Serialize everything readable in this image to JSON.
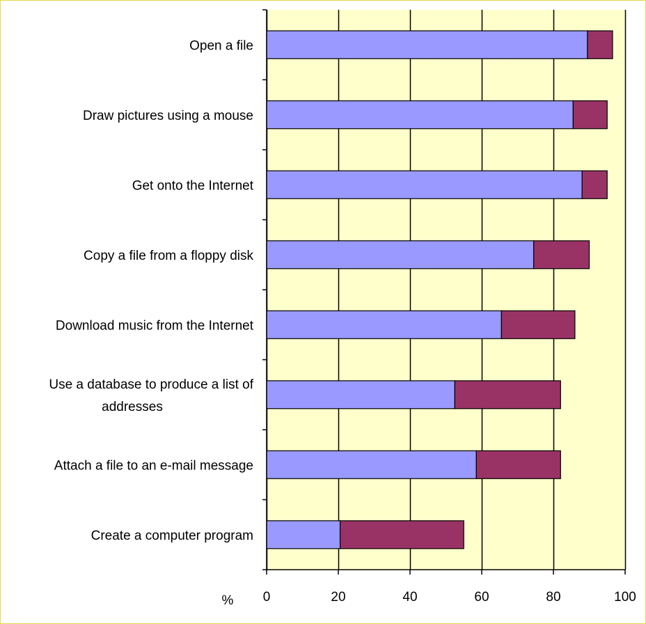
{
  "chart_data": {
    "type": "bar",
    "orientation": "horizontal",
    "stacked": true,
    "categories": [
      "Open a file",
      "Draw pictures using a mouse",
      "Get onto the Internet",
      "Copy a file from a floppy disk",
      "Download music from the Internet",
      "Use a database to produce a list of addresses",
      "Attach a file to an e-mail message",
      "Create a computer program"
    ],
    "category_lines": [
      [
        "Open a file"
      ],
      [
        "Draw pictures using a mouse"
      ],
      [
        "Get onto the Internet"
      ],
      [
        "Copy a file from a floppy disk"
      ],
      [
        "Download music from the Internet"
      ],
      [
        "Use a database to produce a list of",
        "addresses"
      ],
      [
        "Attach a file to an e-mail message"
      ],
      [
        "Create a computer program"
      ]
    ],
    "series": [
      {
        "values": [
          89.5,
          85.5,
          88,
          74.5,
          65.5,
          52.5,
          58.5,
          20.5
        ],
        "color": "#9999ff"
      },
      {
        "values": [
          7,
          9.5,
          7,
          15.5,
          20.5,
          29.5,
          23.5,
          34.5
        ],
        "color": "#993366"
      }
    ],
    "xlim": [
      0,
      100
    ],
    "xticks": [
      "0",
      "20",
      "40",
      "60",
      "80",
      "100"
    ],
    "xlabel": "%",
    "ylabel": "",
    "title": "",
    "grid": true,
    "plot_background": "#ffffcc",
    "grid_color": "#000000",
    "frame_color": "#e6d84a"
  }
}
